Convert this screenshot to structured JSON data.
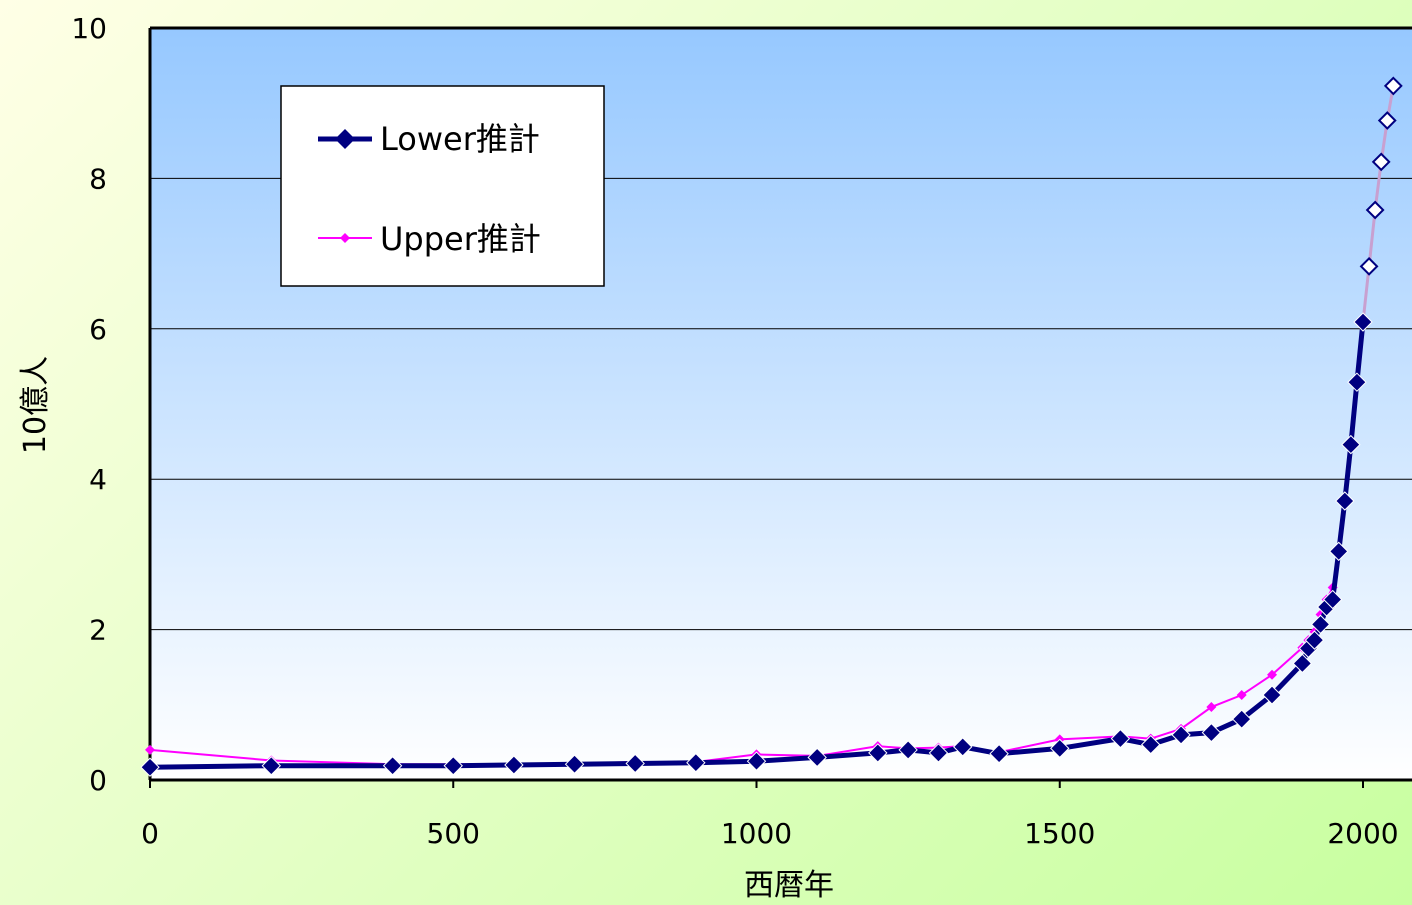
{
  "chart_data": {
    "type": "line",
    "xlabel": "西暦年",
    "ylabel": "10億人",
    "xlim": [
      0,
      2050
    ],
    "ylim": [
      0,
      10
    ],
    "xticks": [
      0,
      500,
      1000,
      1500,
      2000
    ],
    "yticks": [
      0,
      2,
      4,
      6,
      8,
      10
    ],
    "grid": "horizontal",
    "legend_position": "top-left",
    "colors": {
      "lower": "#000080",
      "upper": "#ff00ff",
      "projection_line": "#c8a0d0"
    },
    "series": [
      {
        "name": "Lower推計",
        "points": [
          [
            0,
            0.17
          ],
          [
            200,
            0.19
          ],
          [
            400,
            0.19
          ],
          [
            500,
            0.19
          ],
          [
            600,
            0.2
          ],
          [
            700,
            0.21
          ],
          [
            800,
            0.22
          ],
          [
            900,
            0.23
          ],
          [
            1000,
            0.25
          ],
          [
            1100,
            0.3
          ],
          [
            1200,
            0.36
          ],
          [
            1250,
            0.4
          ],
          [
            1300,
            0.36
          ],
          [
            1340,
            0.44
          ],
          [
            1400,
            0.35
          ],
          [
            1500,
            0.42
          ],
          [
            1600,
            0.55
          ],
          [
            1650,
            0.47
          ],
          [
            1700,
            0.6
          ],
          [
            1750,
            0.63
          ],
          [
            1800,
            0.81
          ],
          [
            1850,
            1.13
          ],
          [
            1900,
            1.55
          ],
          [
            1910,
            1.75
          ],
          [
            1920,
            1.86
          ],
          [
            1930,
            2.07
          ],
          [
            1940,
            2.3
          ],
          [
            1950,
            2.4
          ],
          [
            1960,
            3.04
          ],
          [
            1970,
            3.71
          ],
          [
            1980,
            4.46
          ],
          [
            1990,
            5.29
          ],
          [
            2000,
            6.09
          ]
        ]
      },
      {
        "name": "Upper推計",
        "points": [
          [
            0,
            0.4
          ],
          [
            200,
            0.26
          ],
          [
            400,
            0.21
          ],
          [
            500,
            0.21
          ],
          [
            600,
            0.21
          ],
          [
            700,
            0.22
          ],
          [
            800,
            0.24
          ],
          [
            900,
            0.24
          ],
          [
            1000,
            0.34
          ],
          [
            1100,
            0.32
          ],
          [
            1200,
            0.45
          ],
          [
            1250,
            0.42
          ],
          [
            1300,
            0.43
          ],
          [
            1340,
            0.45
          ],
          [
            1400,
            0.37
          ],
          [
            1500,
            0.54
          ],
          [
            1600,
            0.58
          ],
          [
            1650,
            0.55
          ],
          [
            1700,
            0.68
          ],
          [
            1750,
            0.97
          ],
          [
            1800,
            1.13
          ],
          [
            1850,
            1.4
          ],
          [
            1900,
            1.76
          ],
          [
            1910,
            1.86
          ],
          [
            1920,
            1.97
          ],
          [
            1930,
            2.2
          ],
          [
            1940,
            2.4
          ],
          [
            1950,
            2.56
          ]
        ]
      },
      {
        "name": "",
        "style": "projection",
        "points": [
          [
            2000,
            6.09
          ],
          [
            2010,
            6.83
          ],
          [
            2020,
            7.58
          ],
          [
            2030,
            8.22
          ],
          [
            2040,
            8.77
          ],
          [
            2050,
            9.23
          ]
        ]
      }
    ]
  }
}
